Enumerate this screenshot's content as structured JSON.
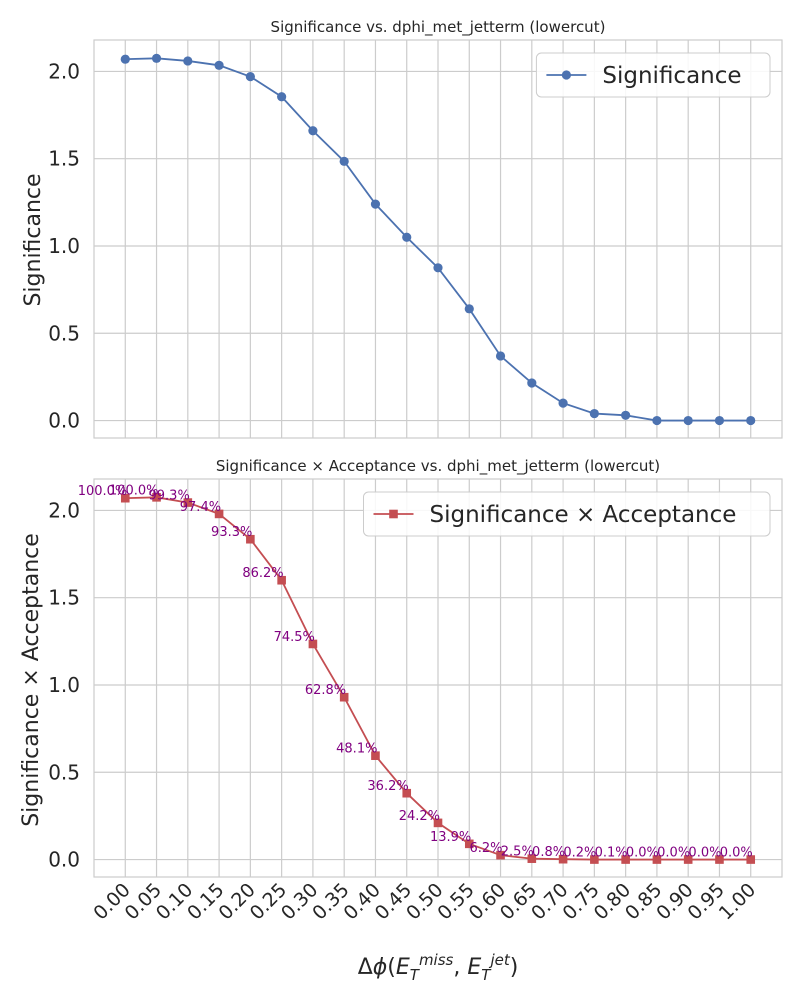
{
  "chart_data": [
    {
      "type": "line",
      "title": "Significance vs. dphi_met_jetterm (lowercut)",
      "xlabel": "",
      "ylabel": "Significance",
      "x": [
        0.0,
        0.05,
        0.1,
        0.15,
        0.2,
        0.25,
        0.3,
        0.35,
        0.4,
        0.45,
        0.5,
        0.55,
        0.6,
        0.65,
        0.7,
        0.75,
        0.8,
        0.85,
        0.9,
        0.95,
        1.0
      ],
      "series": [
        {
          "name": "Significance",
          "color": "#4c72b0",
          "marker": "circle",
          "values": [
            2.07,
            2.075,
            2.06,
            2.035,
            1.97,
            1.855,
            1.66,
            1.485,
            1.24,
            1.05,
            0.875,
            0.64,
            0.37,
            0.215,
            0.1,
            0.04,
            0.03,
            0.0,
            0.0,
            0.0,
            0.0
          ]
        }
      ],
      "xlim": [
        -0.05,
        1.05
      ],
      "ylim": [
        -0.1,
        2.18
      ],
      "yticks": [
        "0.0",
        "0.5",
        "1.0",
        "1.5",
        "2.0"
      ],
      "grid": true,
      "legend": "upper right"
    },
    {
      "type": "line",
      "title": "Significance × Acceptance vs. dphi_met_jetterm (lowercut)",
      "xlabel": "Δϕ(E_T^miss, E_T^jet)",
      "ylabel": "Significance × Acceptance",
      "x": [
        0.0,
        0.05,
        0.1,
        0.15,
        0.2,
        0.25,
        0.3,
        0.35,
        0.4,
        0.45,
        0.5,
        0.55,
        0.6,
        0.65,
        0.7,
        0.75,
        0.8,
        0.85,
        0.9,
        0.95,
        1.0
      ],
      "series": [
        {
          "name": "Significance × Acceptance",
          "color": "#c44e52",
          "marker": "square",
          "values": [
            2.07,
            2.075,
            2.045,
            1.98,
            1.835,
            1.6,
            1.235,
            0.93,
            0.595,
            0.38,
            0.21,
            0.09,
            0.025,
            0.005,
            0.002,
            0.0,
            0.0,
            0.0,
            0.0,
            0.0,
            0.0
          ]
        }
      ],
      "annotations": [
        "100.0%",
        "100.0%",
        "99.3%",
        "97.4%",
        "93.3%",
        "86.2%",
        "74.5%",
        "62.8%",
        "48.1%",
        "36.2%",
        "24.2%",
        "13.9%",
        "6.2%",
        "2.5%",
        "0.8%",
        "0.2%",
        "0.1%",
        "0.0%",
        "0.0%",
        "0.0%",
        "0.0%"
      ],
      "annotation_color": "#800080",
      "xticks": [
        "0.00",
        "0.05",
        "0.10",
        "0.15",
        "0.20",
        "0.25",
        "0.30",
        "0.35",
        "0.40",
        "0.45",
        "0.50",
        "0.55",
        "0.60",
        "0.65",
        "0.70",
        "0.75",
        "0.80",
        "0.85",
        "0.90",
        "0.95",
        "1.00"
      ],
      "xlim": [
        -0.05,
        1.05
      ],
      "ylim": [
        -0.1,
        2.18
      ],
      "yticks": [
        "0.0",
        "0.5",
        "1.0",
        "1.5",
        "2.0"
      ],
      "grid": true,
      "legend": "upper right"
    }
  ]
}
